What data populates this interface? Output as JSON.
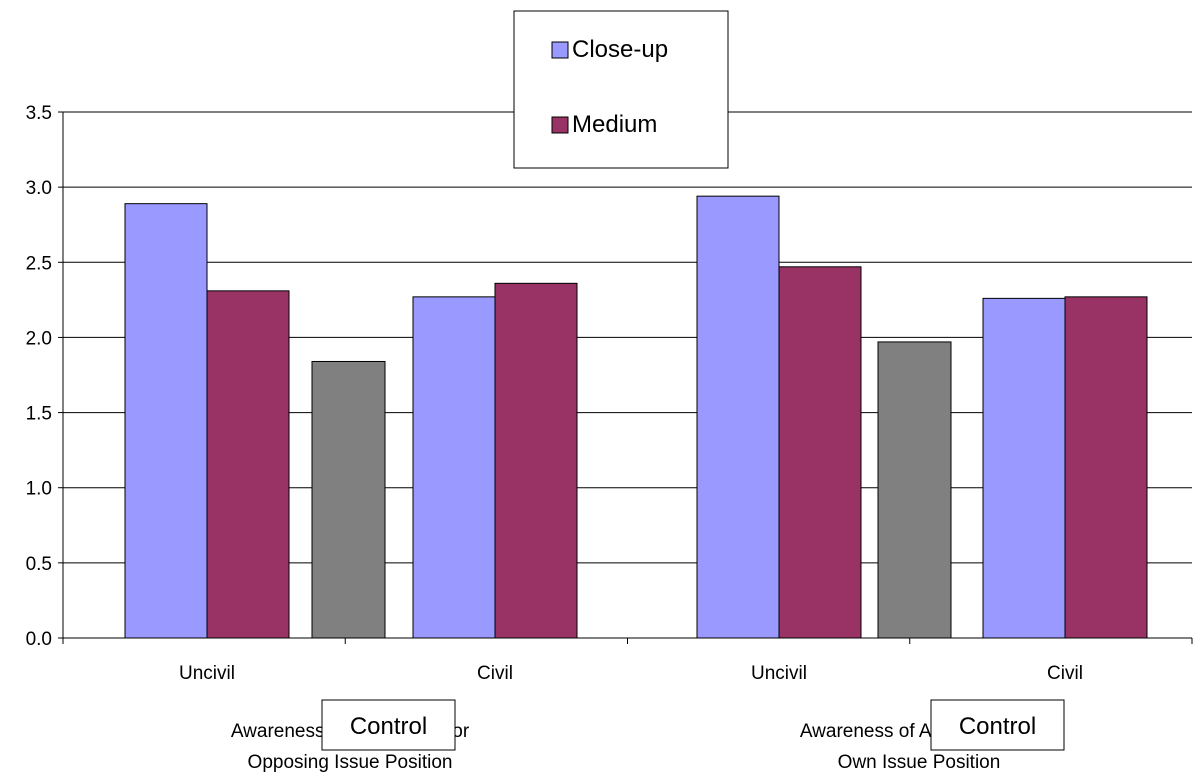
{
  "chart_data": {
    "type": "bar",
    "ylim": [
      0,
      3.5
    ],
    "yticks": [
      "0.0",
      "0.5",
      "1.0",
      "1.5",
      "2.0",
      "2.5",
      "3.0",
      "3.5"
    ],
    "grid": true,
    "legend": {
      "placement": "top-center",
      "entries": [
        {
          "label": "Close-up",
          "color": "#9999ff"
        },
        {
          "label": "Medium",
          "color": "#993366"
        }
      ]
    },
    "control_color": "#808080",
    "control_label": "Control",
    "groups": [
      {
        "label_line1": "Awareness of Arguments for",
        "label_line2": "Opposing Issue Position",
        "control_value": 1.84,
        "conditions": [
          {
            "label": "Uncivil",
            "values": [
              {
                "series": "Close-up",
                "value": 2.89
              },
              {
                "series": "Medium",
                "value": 2.31
              }
            ]
          },
          {
            "label": "Civil",
            "values": [
              {
                "series": "Close-up",
                "value": 2.27
              },
              {
                "series": "Medium",
                "value": 2.36
              }
            ]
          }
        ]
      },
      {
        "label_line1": "Awareness of Arguments for",
        "label_line2": "Own Issue Position",
        "control_value": 1.97,
        "conditions": [
          {
            "label": "Uncivil",
            "values": [
              {
                "series": "Close-up",
                "value": 2.94
              },
              {
                "series": "Medium",
                "value": 2.47
              }
            ]
          },
          {
            "label": "Civil",
            "values": [
              {
                "series": "Close-up",
                "value": 2.26
              },
              {
                "series": "Medium",
                "value": 2.27
              }
            ]
          }
        ]
      }
    ]
  }
}
